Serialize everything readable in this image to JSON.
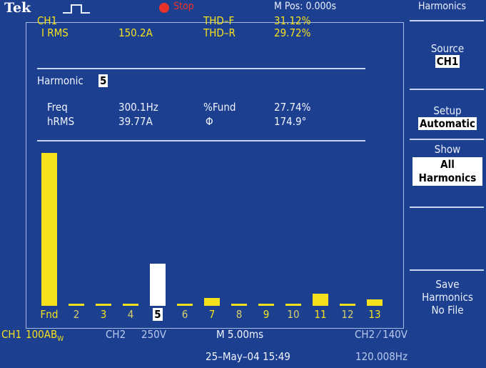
{
  "header": {
    "brand": "Tek",
    "status": "Stop",
    "mpos": "M Pos: 0.000s",
    "menu_title": "Harmonics",
    "status_color": "#e8332a",
    "trigger_icon": "pulse-icon"
  },
  "readout": {
    "ch_label": "CH1",
    "irms_label": "I RMS",
    "irms_value": "150.2A",
    "thdf_label": "THD–F",
    "thdf_value": "31.12%",
    "thdr_label": "THD–R",
    "thdr_value": "29.72%",
    "harmonic_label": "Harmonic",
    "harmonic_value": "5",
    "freq_label": "Freq",
    "freq_value": "300.1Hz",
    "pfund_label": "%Fund",
    "pfund_value": "27.74%",
    "hrms_label": "hRMS",
    "hrms_value": "39.77A",
    "phase_label": "Φ",
    "phase_value": "174.9°"
  },
  "side_menu": {
    "source_label": "Source",
    "source_value": "CH1",
    "setup_label": "Setup",
    "setup_value": "Automatic",
    "show_label": "Show",
    "show_value_1": "All",
    "show_value_2": "Harmonics",
    "save_label_1": "Save",
    "save_label_2": "Harmonics",
    "save_label_3": "No File"
  },
  "footer": {
    "ch1": "CH1",
    "ch1_scale": "100AB",
    "ch1_scale_sub": "W",
    "ch2": "CH2",
    "ch2_scale": "250V",
    "timebase": "M 5.00ms",
    "trig": "CH2 ⁄ 140V",
    "date": "25–May–04 15:49",
    "freq": "120.008Hz"
  },
  "chart_data": {
    "type": "bar",
    "categories": [
      "Fnd",
      "2",
      "3",
      "4",
      "5",
      "6",
      "7",
      "8",
      "9",
      "10",
      "11",
      "12",
      "13"
    ],
    "values": [
      100,
      1,
      1,
      1,
      27.74,
      1,
      5,
      1,
      1,
      1,
      8,
      1,
      4
    ],
    "selected": "5",
    "ylim": [
      0,
      100
    ],
    "colors": {
      "bar": "#f5e21c",
      "selected": "#ffffff"
    }
  }
}
